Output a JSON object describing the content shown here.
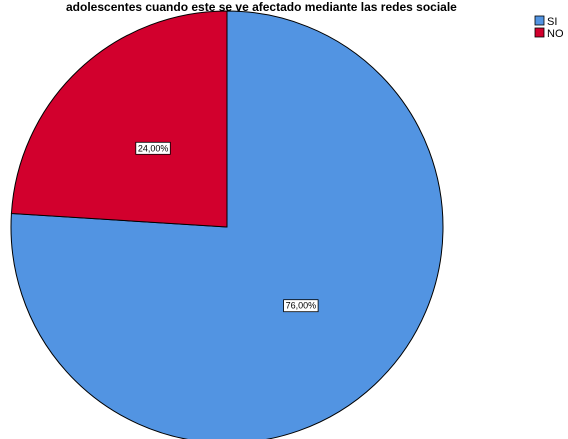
{
  "chart_data": {
    "type": "pie",
    "title": "adolescentes cuando este se ve afectado mediante las redes sociale",
    "categories": [
      "SI",
      "NO"
    ],
    "values": [
      76.0,
      24.0
    ],
    "data_labels": [
      "76,00%",
      "24,00%"
    ],
    "colors": [
      "#5294e2",
      "#d2002d"
    ],
    "legend_position": "top-right"
  }
}
